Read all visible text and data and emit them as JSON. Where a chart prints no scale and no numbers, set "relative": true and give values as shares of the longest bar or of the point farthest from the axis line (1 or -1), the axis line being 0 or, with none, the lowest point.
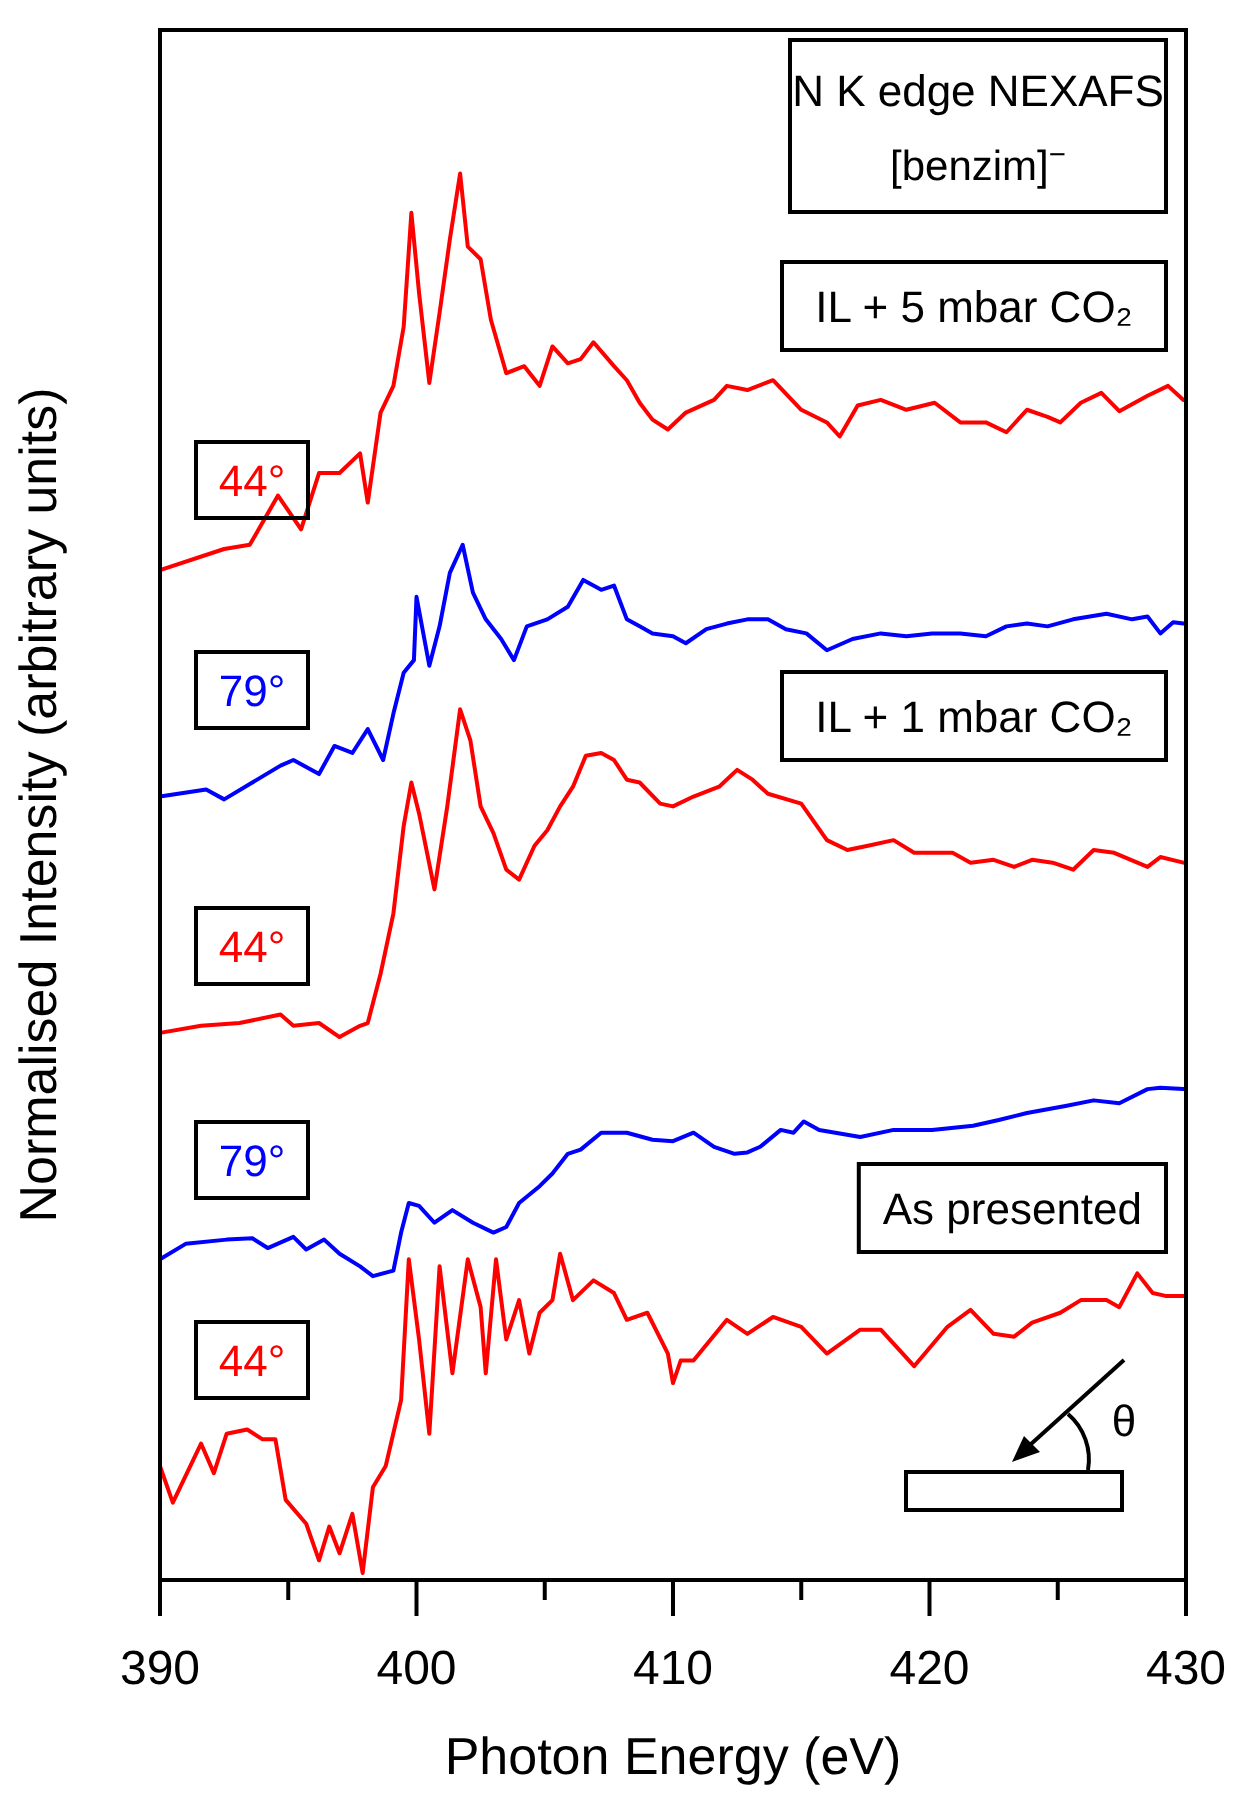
{
  "chart_data": {
    "type": "line",
    "relative": true,
    "title": "N K edge NEXAFS",
    "subtitle": "[benzim]$^{−}$",
    "xlabel": "Photon Energy (eV)",
    "ylabel": "Normalised Intensity (arbitrary units)",
    "xlim": [
      390,
      430
    ],
    "xticks": [
      390,
      {
        "value": 395,
        "label": null
      },
      400,
      {
        "value": 405,
        "label": null
      },
      410,
      {
        "value": 415,
        "label": null
      },
      420,
      {
        "value": 425,
        "label": null
      },
      430
    ],
    "annotations": [
      "IL + 5 mbar CO₂",
      "IL + 1 mbar CO₂",
      "As presented",
      "θ"
    ],
    "series": [
      {
        "name": "44°",
        "color": "#ff0000",
        "x": [
          390.0,
          392.5,
          393.5,
          394.6,
          395.5,
          396.2,
          397.0,
          397.8,
          398.1,
          398.6,
          399.1,
          399.5,
          399.8,
          400.1,
          400.5,
          400.9,
          401.3,
          401.7,
          402.0,
          402.5,
          402.9,
          403.5,
          404.2,
          404.8,
          405.3,
          405.9,
          406.4,
          406.9,
          407.7,
          408.2,
          408.7,
          409.2,
          409.8,
          410.5,
          411.6,
          412.1,
          412.9,
          413.9,
          415.0,
          416.0,
          416.5,
          417.2,
          418.1,
          419.1,
          420.2,
          421.2,
          422.2,
          423.0,
          423.8,
          424.6,
          425.1,
          425.9,
          426.7,
          427.4,
          428.5,
          429.3,
          429.9
        ],
        "values": [
          0.718,
          0.733,
          0.736,
          0.771,
          0.747,
          0.787,
          0.787,
          0.801,
          0.766,
          0.83,
          0.849,
          0.891,
          0.972,
          0.915,
          0.851,
          0.901,
          0.953,
          1.0,
          0.948,
          0.939,
          0.896,
          0.858,
          0.863,
          0.849,
          0.877,
          0.865,
          0.868,
          0.88,
          0.863,
          0.853,
          0.837,
          0.825,
          0.818,
          0.83,
          0.839,
          0.849,
          0.846,
          0.853,
          0.832,
          0.823,
          0.813,
          0.835,
          0.839,
          0.832,
          0.837,
          0.823,
          0.823,
          0.816,
          0.832,
          0.827,
          0.823,
          0.837,
          0.844,
          0.831,
          0.842,
          0.849,
          0.839
        ]
      },
      {
        "name": "79°",
        "color": "#0000ff",
        "x": [
          390.0,
          391.8,
          392.5,
          393.6,
          394.7,
          395.2,
          396.2,
          396.8,
          397.5,
          398.1,
          398.7,
          399.1,
          399.5,
          399.9,
          400.0,
          400.5,
          400.9,
          401.3,
          401.8,
          402.2,
          402.7,
          403.3,
          403.8,
          404.3,
          405.1,
          405.9,
          406.5,
          407.2,
          407.7,
          408.2,
          408.7,
          409.2,
          410.0,
          410.5,
          411.3,
          412.1,
          412.9,
          413.7,
          414.4,
          415.2,
          416.0,
          417.0,
          418.1,
          419.1,
          420.1,
          421.2,
          422.2,
          423.0,
          423.8,
          424.6,
          425.6,
          426.9,
          427.9,
          428.5,
          429.0,
          429.5,
          429.9
        ],
        "values": [
          0.557,
          0.562,
          0.555,
          0.567,
          0.579,
          0.583,
          0.573,
          0.593,
          0.588,
          0.605,
          0.583,
          0.616,
          0.645,
          0.654,
          0.699,
          0.65,
          0.678,
          0.716,
          0.736,
          0.702,
          0.683,
          0.669,
          0.654,
          0.678,
          0.683,
          0.692,
          0.711,
          0.704,
          0.707,
          0.683,
          0.678,
          0.673,
          0.671,
          0.666,
          0.676,
          0.68,
          0.683,
          0.683,
          0.676,
          0.673,
          0.661,
          0.669,
          0.673,
          0.671,
          0.673,
          0.673,
          0.671,
          0.678,
          0.68,
          0.678,
          0.683,
          0.687,
          0.683,
          0.685,
          0.673,
          0.681,
          0.68
        ]
      },
      {
        "name": "44°",
        "color": "#ff0000",
        "x": [
          390.0,
          391.6,
          393.1,
          394.7,
          395.2,
          396.2,
          397.0,
          397.8,
          398.1,
          398.6,
          399.1,
          399.5,
          399.8,
          400.1,
          400.7,
          401.2,
          401.7,
          402.1,
          402.5,
          403.0,
          403.5,
          404.0,
          404.6,
          405.1,
          405.6,
          406.1,
          406.6,
          407.2,
          407.7,
          408.2,
          408.7,
          409.5,
          410.0,
          410.8,
          411.8,
          412.5,
          413.1,
          413.7,
          415.0,
          416.0,
          416.8,
          417.6,
          418.6,
          419.4,
          420.9,
          421.6,
          422.5,
          423.3,
          424.0,
          424.8,
          425.6,
          426.4,
          427.2,
          428.5,
          429.0,
          429.9
        ],
        "values": [
          0.389,
          0.394,
          0.396,
          0.402,
          0.394,
          0.396,
          0.386,
          0.394,
          0.396,
          0.431,
          0.474,
          0.536,
          0.567,
          0.545,
          0.491,
          0.55,
          0.619,
          0.597,
          0.55,
          0.531,
          0.505,
          0.498,
          0.522,
          0.533,
          0.55,
          0.564,
          0.586,
          0.588,
          0.583,
          0.569,
          0.567,
          0.552,
          0.55,
          0.557,
          0.564,
          0.576,
          0.569,
          0.559,
          0.552,
          0.526,
          0.519,
          0.522,
          0.526,
          0.517,
          0.517,
          0.51,
          0.512,
          0.507,
          0.512,
          0.51,
          0.505,
          0.519,
          0.517,
          0.507,
          0.514,
          0.51
        ]
      },
      {
        "name": "79°",
        "color": "#0000ff",
        "x": [
          390.0,
          391.0,
          392.6,
          393.6,
          394.2,
          395.2,
          395.7,
          396.4,
          397.0,
          397.8,
          398.3,
          399.1,
          399.4,
          399.7,
          400.1,
          400.7,
          401.4,
          402.2,
          403.0,
          403.5,
          404.0,
          404.8,
          405.3,
          405.9,
          406.4,
          407.2,
          408.2,
          409.2,
          410.0,
          410.8,
          411.6,
          412.4,
          412.9,
          413.4,
          414.2,
          414.7,
          415.1,
          415.7,
          417.3,
          418.6,
          420.1,
          421.7,
          422.7,
          423.8,
          425.3,
          426.4,
          427.4,
          428.5,
          429.0,
          429.9
        ],
        "values": [
          0.228,
          0.239,
          0.242,
          0.243,
          0.236,
          0.244,
          0.235,
          0.242,
          0.232,
          0.223,
          0.216,
          0.22,
          0.247,
          0.268,
          0.266,
          0.254,
          0.263,
          0.254,
          0.247,
          0.251,
          0.268,
          0.28,
          0.289,
          0.303,
          0.306,
          0.318,
          0.318,
          0.313,
          0.312,
          0.318,
          0.308,
          0.303,
          0.304,
          0.308,
          0.32,
          0.318,
          0.326,
          0.32,
          0.315,
          0.32,
          0.32,
          0.323,
          0.327,
          0.332,
          0.337,
          0.341,
          0.339,
          0.349,
          0.35,
          0.349
        ]
      },
      {
        "name": "44°",
        "color": "#ff0000",
        "x": [
          390.0,
          390.5,
          391.6,
          392.1,
          392.6,
          393.4,
          394.0,
          394.5,
          394.9,
          395.7,
          396.2,
          396.6,
          397.0,
          397.5,
          397.9,
          398.3,
          398.8,
          399.4,
          399.7,
          400.1,
          400.5,
          400.9,
          401.4,
          402.0,
          402.5,
          402.7,
          403.1,
          403.5,
          404.0,
          404.4,
          404.8,
          405.3,
          405.6,
          406.1,
          406.9,
          407.7,
          408.2,
          409.0,
          409.8,
          410.0,
          410.3,
          410.8,
          412.1,
          412.9,
          413.9,
          415.0,
          416.0,
          417.3,
          418.1,
          419.4,
          420.7,
          421.6,
          422.5,
          423.3,
          424.0,
          425.1,
          425.9,
          426.9,
          427.4,
          428.1,
          428.7,
          429.2,
          429.9
        ],
        "values": [
          0.081,
          0.055,
          0.097,
          0.076,
          0.104,
          0.107,
          0.1,
          0.1,
          0.057,
          0.04,
          0.014,
          0.038,
          0.019,
          0.047,
          0.005,
          0.066,
          0.081,
          0.128,
          0.228,
          0.171,
          0.104,
          0.223,
          0.147,
          0.228,
          0.194,
          0.147,
          0.228,
          0.171,
          0.199,
          0.161,
          0.19,
          0.199,
          0.232,
          0.199,
          0.213,
          0.204,
          0.185,
          0.19,
          0.161,
          0.14,
          0.156,
          0.156,
          0.185,
          0.175,
          0.187,
          0.18,
          0.161,
          0.178,
          0.178,
          0.152,
          0.18,
          0.192,
          0.175,
          0.173,
          0.183,
          0.19,
          0.199,
          0.199,
          0.194,
          0.218,
          0.204,
          0.202,
          0.202
        ]
      }
    ]
  }
}
